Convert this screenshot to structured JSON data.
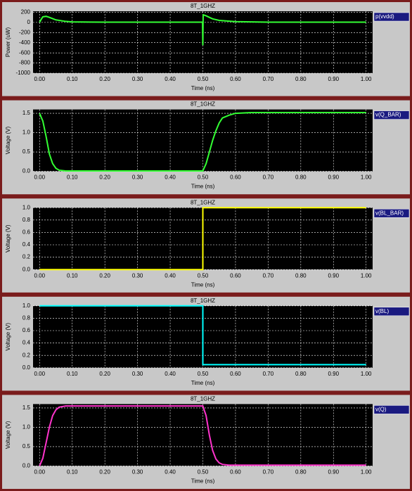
{
  "chart_data": [
    {
      "type": "line",
      "title": "8T_1GHZ",
      "xlabel": "Time (ns)",
      "ylabel": "Power (uW)",
      "x": [
        0,
        0.005,
        0.01,
        0.02,
        0.03,
        0.05,
        0.08,
        0.1,
        0.2,
        0.3,
        0.4,
        0.499,
        0.5,
        0.501,
        0.51,
        0.52,
        0.53,
        0.55,
        0.6,
        0.7,
        0.8,
        0.9,
        1.0
      ],
      "series": [
        {
          "name": "p(vvdd)",
          "color": "#33ff33",
          "values": [
            0,
            60,
            110,
            120,
            100,
            50,
            20,
            10,
            5,
            5,
            5,
            5,
            -450,
            150,
            130,
            100,
            70,
            40,
            15,
            5,
            5,
            5,
            5
          ]
        }
      ],
      "xlim": [
        -0.02,
        1.02
      ],
      "xticks": [
        {
          "value": 0,
          "label": "0.00"
        },
        {
          "value": 0.1,
          "label": "0.10"
        },
        {
          "value": 0.2,
          "label": "0.20"
        },
        {
          "value": 0.3,
          "label": "0.30"
        },
        {
          "value": 0.4,
          "label": "0.40"
        },
        {
          "value": 0.5,
          "label": "0.50"
        },
        {
          "value": 0.6,
          "label": "0.60"
        },
        {
          "value": 0.7,
          "label": "0.70"
        },
        {
          "value": 0.8,
          "label": "0.80"
        },
        {
          "value": 0.9,
          "label": "0.90"
        },
        {
          "value": 1.0,
          "label": "1.00"
        }
      ],
      "ylim": [
        -1000,
        220
      ],
      "yticks": [
        200,
        0,
        -200,
        -400,
        -600,
        -800,
        -1000
      ],
      "grid": true
    },
    {
      "type": "line",
      "title": "8T_1GHZ",
      "xlabel": "Time (ns)",
      "ylabel": "Voltage (V)",
      "x": [
        0,
        0.01,
        0.02,
        0.03,
        0.04,
        0.05,
        0.06,
        0.08,
        0.1,
        0.2,
        0.3,
        0.4,
        0.5,
        0.51,
        0.52,
        0.53,
        0.54,
        0.55,
        0.56,
        0.58,
        0.6,
        0.65,
        0.7,
        0.8,
        0.9,
        1.0
      ],
      "series": [
        {
          "name": "v(Q_BAR)",
          "color": "#33ff33",
          "values": [
            1.5,
            1.3,
            0.9,
            0.45,
            0.2,
            0.08,
            0.03,
            0.01,
            0.01,
            0.01,
            0.01,
            0.01,
            0.01,
            0.2,
            0.5,
            0.8,
            1.05,
            1.25,
            1.38,
            1.45,
            1.5,
            1.52,
            1.52,
            1.52,
            1.52,
            1.52
          ]
        }
      ],
      "xlim": [
        -0.02,
        1.02
      ],
      "xticks": [
        {
          "value": 0,
          "label": "0.00"
        },
        {
          "value": 0.1,
          "label": "0.10"
        },
        {
          "value": 0.2,
          "label": "0.20"
        },
        {
          "value": 0.3,
          "label": "0.30"
        },
        {
          "value": 0.4,
          "label": "0.40"
        },
        {
          "value": 0.5,
          "label": "0.50"
        },
        {
          "value": 0.6,
          "label": "0.60"
        },
        {
          "value": 0.7,
          "label": "0.70"
        },
        {
          "value": 0.8,
          "label": "0.80"
        },
        {
          "value": 0.9,
          "label": "0.90"
        },
        {
          "value": 1.0,
          "label": "1.00"
        }
      ],
      "ylim": [
        0,
        1.6
      ],
      "yticks": [
        {
          "value": 0,
          "label": "0.0"
        },
        {
          "value": 0.5,
          "label": "0.5"
        },
        {
          "value": 1.0,
          "label": "1.0"
        },
        {
          "value": 1.5,
          "label": "1.5"
        }
      ],
      "grid": true
    },
    {
      "type": "line",
      "title": "8T_1GHZ",
      "xlabel": "Time (ns)",
      "ylabel": "Voltage (V)",
      "x": [
        0,
        0.5,
        0.5,
        1.0
      ],
      "series": [
        {
          "name": "v(BL_BAR)",
          "color": "#ffff00",
          "values": [
            0,
            0,
            1.0,
            1.0
          ]
        }
      ],
      "xlim": [
        -0.02,
        1.02
      ],
      "xticks": [
        {
          "value": 0,
          "label": "0.00"
        },
        {
          "value": 0.1,
          "label": "0.10"
        },
        {
          "value": 0.2,
          "label": "0.20"
        },
        {
          "value": 0.3,
          "label": "0.30"
        },
        {
          "value": 0.4,
          "label": "0.40"
        },
        {
          "value": 0.5,
          "label": "0.50"
        },
        {
          "value": 0.6,
          "label": "0.60"
        },
        {
          "value": 0.7,
          "label": "0.70"
        },
        {
          "value": 0.8,
          "label": "0.80"
        },
        {
          "value": 0.9,
          "label": "0.90"
        },
        {
          "value": 1.0,
          "label": "1.00"
        }
      ],
      "ylim": [
        0,
        1.0
      ],
      "yticks": [
        {
          "value": 0,
          "label": "0.0"
        },
        {
          "value": 0.2,
          "label": "0.2"
        },
        {
          "value": 0.4,
          "label": "0.4"
        },
        {
          "value": 0.6,
          "label": "0.6"
        },
        {
          "value": 0.8,
          "label": "0.8"
        },
        {
          "value": 1.0,
          "label": "1.0"
        }
      ],
      "grid": true
    },
    {
      "type": "line",
      "title": "8T_1GHZ",
      "xlabel": "Time (ns)",
      "ylabel": "Voltage (V)",
      "x": [
        0,
        0.5,
        0.5,
        1.0
      ],
      "series": [
        {
          "name": "v(BL)",
          "color": "#00ffff",
          "values": [
            1.0,
            1.0,
            0.05,
            0.05
          ]
        }
      ],
      "xlim": [
        -0.02,
        1.02
      ],
      "xticks": [
        {
          "value": 0,
          "label": "0.00"
        },
        {
          "value": 0.1,
          "label": "0.10"
        },
        {
          "value": 0.2,
          "label": "0.20"
        },
        {
          "value": 0.3,
          "label": "0.30"
        },
        {
          "value": 0.4,
          "label": "0.40"
        },
        {
          "value": 0.5,
          "label": "0.50"
        },
        {
          "value": 0.6,
          "label": "0.60"
        },
        {
          "value": 0.7,
          "label": "0.70"
        },
        {
          "value": 0.8,
          "label": "0.80"
        },
        {
          "value": 0.9,
          "label": "0.90"
        },
        {
          "value": 1.0,
          "label": "1.00"
        }
      ],
      "ylim": [
        0,
        1.0
      ],
      "yticks": [
        {
          "value": 0,
          "label": "0.0"
        },
        {
          "value": 0.2,
          "label": "0.2"
        },
        {
          "value": 0.4,
          "label": "0.4"
        },
        {
          "value": 0.6,
          "label": "0.6"
        },
        {
          "value": 0.8,
          "label": "0.8"
        },
        {
          "value": 1.0,
          "label": "1.0"
        }
      ],
      "grid": true
    },
    {
      "type": "line",
      "title": "8T_1GHZ",
      "xlabel": "Time (ns)",
      "ylabel": "Voltage (V)",
      "x": [
        0,
        0.01,
        0.02,
        0.03,
        0.04,
        0.05,
        0.06,
        0.08,
        0.1,
        0.2,
        0.3,
        0.4,
        0.5,
        0.51,
        0.52,
        0.53,
        0.54,
        0.55,
        0.56,
        0.58,
        0.6,
        0.65,
        0.7,
        0.8,
        0.9,
        1.0
      ],
      "series": [
        {
          "name": "v(Q)",
          "color": "#ff33cc",
          "values": [
            0,
            0.2,
            0.6,
            1.0,
            1.3,
            1.45,
            1.52,
            1.55,
            1.55,
            1.55,
            1.55,
            1.55,
            1.55,
            1.3,
            0.8,
            0.4,
            0.18,
            0.08,
            0.04,
            0.02,
            0.02,
            0.02,
            0.02,
            0.02,
            0.02,
            0.02
          ]
        }
      ],
      "xlim": [
        -0.02,
        1.02
      ],
      "xticks": [
        {
          "value": 0,
          "label": "0.00"
        },
        {
          "value": 0.1,
          "label": "0.10"
        },
        {
          "value": 0.2,
          "label": "0.20"
        },
        {
          "value": 0.3,
          "label": "0.30"
        },
        {
          "value": 0.4,
          "label": "0.40"
        },
        {
          "value": 0.5,
          "label": "0.50"
        },
        {
          "value": 0.6,
          "label": "0.60"
        },
        {
          "value": 0.7,
          "label": "0.70"
        },
        {
          "value": 0.8,
          "label": "0.80"
        },
        {
          "value": 0.9,
          "label": "0.90"
        },
        {
          "value": 1.0,
          "label": "1.00"
        }
      ],
      "ylim": [
        0,
        1.6
      ],
      "yticks": [
        {
          "value": 0,
          "label": "0.0"
        },
        {
          "value": 0.5,
          "label": "0.5"
        },
        {
          "value": 1.0,
          "label": "1.0"
        },
        {
          "value": 1.5,
          "label": "1.5"
        }
      ],
      "grid": true
    }
  ]
}
